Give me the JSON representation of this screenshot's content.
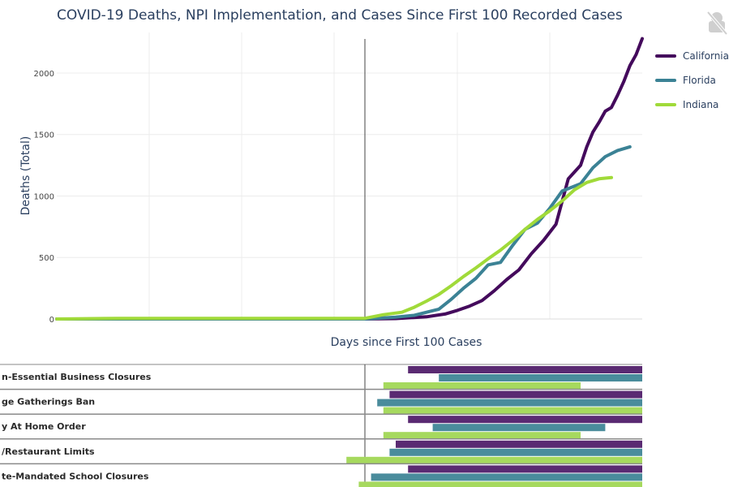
{
  "title": "COVID-19 Deaths, NPI Implementation, and Cases Since First 100 Recorded Cases",
  "modebar": {
    "icon": "no-camera-icon"
  },
  "chart_data": [
    {
      "type": "line",
      "xlabel": "Days since First 100 Cases",
      "ylabel": "Deaths (Total)",
      "xlim": [
        -50,
        45
      ],
      "ylim": [
        0,
        2330
      ],
      "yticks": [
        0,
        500,
        1000,
        1500,
        2000
      ],
      "tick_labels": [
        "0",
        "500",
        "1000",
        "1500",
        "2000"
      ],
      "grid": true,
      "legend_position": "right",
      "series": [
        {
          "name": "California",
          "color": "#440a5c",
          "x": [
            -50,
            -40,
            -30,
            -20,
            -10,
            -5,
            0,
            5,
            10,
            13,
            15,
            17,
            19,
            21,
            23,
            25,
            27,
            29,
            31,
            33,
            35,
            36,
            37,
            38,
            39,
            40,
            41,
            42,
            43,
            44,
            45
          ],
          "y": [
            0,
            0,
            0,
            0,
            0,
            0,
            0,
            3,
            18,
            40,
            70,
            105,
            150,
            230,
            320,
            400,
            530,
            640,
            770,
            1140,
            1250,
            1400,
            1520,
            1600,
            1690,
            1720,
            1820,
            1930,
            2060,
            2150,
            2280
          ]
        },
        {
          "name": "Florida",
          "color": "#3b8295",
          "x": [
            -50,
            -40,
            -30,
            -20,
            -10,
            -5,
            0,
            5,
            8,
            10,
            12,
            14,
            16,
            18,
            20,
            22,
            24,
            26,
            28,
            30,
            32,
            33,
            35,
            37,
            39,
            41,
            43
          ],
          "y": [
            0,
            0,
            0,
            0,
            0,
            0,
            0,
            15,
            30,
            55,
            80,
            160,
            250,
            330,
            440,
            460,
            600,
            730,
            780,
            900,
            1040,
            1060,
            1100,
            1230,
            1320,
            1370,
            1400
          ]
        },
        {
          "name": "Indiana",
          "color": "#a0da39",
          "x": [
            -50,
            -40,
            -30,
            -20,
            -10,
            -5,
            0,
            3,
            6,
            8,
            10,
            12,
            14,
            16,
            18,
            20,
            22,
            24,
            26,
            28,
            30,
            32,
            34,
            36,
            38,
            40
          ],
          "y": [
            0,
            5,
            5,
            5,
            5,
            5,
            5,
            35,
            55,
            95,
            145,
            200,
            270,
            345,
            415,
            490,
            560,
            640,
            730,
            810,
            880,
            960,
            1050,
            1110,
            1140,
            1150
          ]
        }
      ]
    },
    {
      "type": "bar",
      "orientation": "horizontal",
      "xlim": [
        -50,
        45
      ],
      "categories": [
        "Non-Essential Business Closures",
        "Large Gatherings Ban",
        "Stay At Home Order",
        "Bar/Restaurant Limits",
        "State-Mandated School Closures"
      ],
      "visible_labels": [
        "n-Essential Business Closures",
        "ge Gatherings Ban",
        "y At Home Order",
        "/Restaurant Limits",
        "te-Mandated School Closures"
      ],
      "series": [
        {
          "name": "California",
          "color": "#5a2a72",
          "start": [
            7,
            4,
            7,
            5,
            7
          ],
          "end": [
            45,
            45,
            45,
            45,
            45
          ]
        },
        {
          "name": "Florida",
          "color": "#4a8c9c",
          "start": [
            12,
            2,
            11,
            4,
            1
          ],
          "end": [
            45,
            45,
            39,
            45,
            45
          ]
        },
        {
          "name": "Indiana",
          "color": "#a6d95e",
          "start": [
            3,
            3,
            3,
            -3,
            -1
          ],
          "end": [
            35,
            45,
            35,
            45,
            45
          ]
        }
      ]
    }
  ]
}
